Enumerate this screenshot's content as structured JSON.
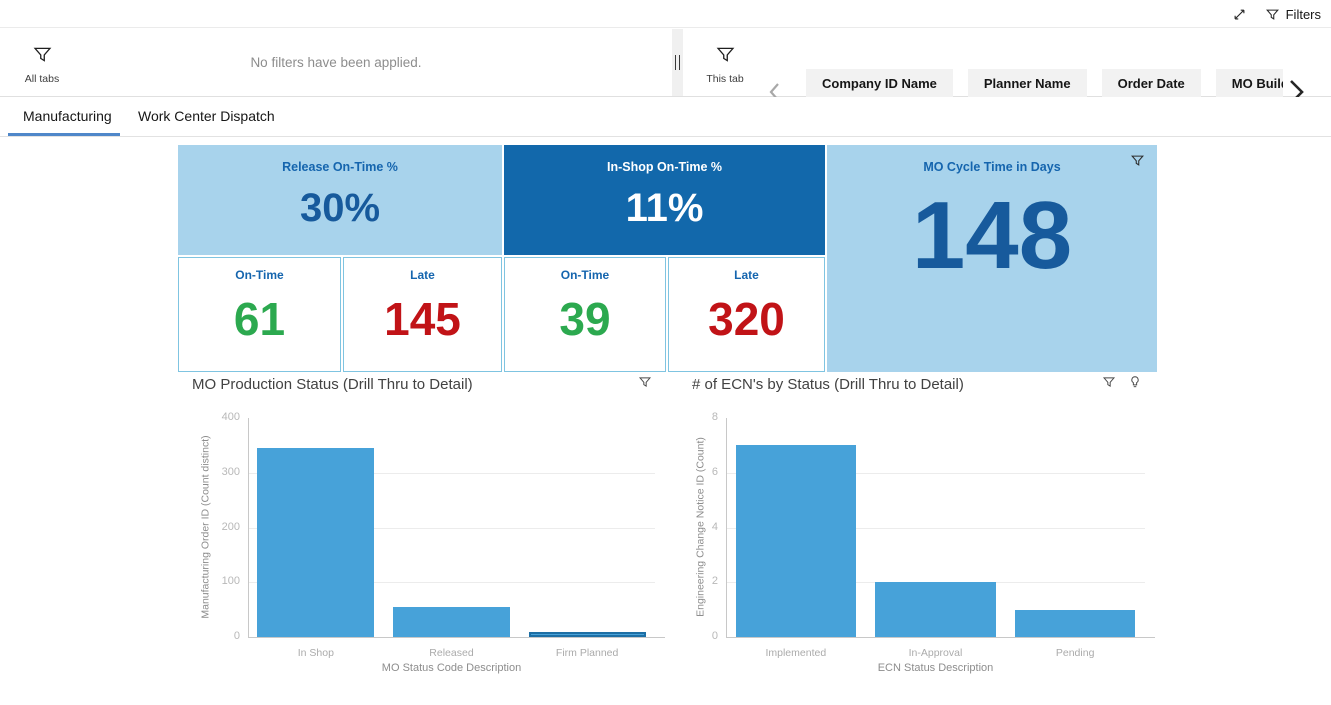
{
  "topbar": {
    "filters_label": "Filters",
    "icons": {
      "expand": "expand-diagonal-icon",
      "filters": "funnel-icon"
    }
  },
  "filter_bar": {
    "all_tabs": {
      "label": "All tabs",
      "icon": "funnel-icon"
    },
    "this_tab": {
      "label": "This tab",
      "icon": "funnel-icon"
    },
    "no_filters_message": "No filters have been applied.",
    "chips": [
      "Company ID Name",
      "Planner Name",
      "Order Date",
      "MO Build Date"
    ],
    "scroll_icons": {
      "left": "chevron-left-icon",
      "right": "chevron-right-icon"
    }
  },
  "tabs": [
    {
      "label": "Manufacturing",
      "active": true
    },
    {
      "label": "Work Center Dispatch",
      "active": false
    }
  ],
  "kpis": {
    "release_on_time": {
      "title": "Release On-Time %",
      "value": "30%"
    },
    "in_shop_on_time": {
      "title": "In-Shop On-Time %",
      "value": "11%"
    },
    "mo_cycle_time": {
      "title": "MO Cycle Time in Days",
      "value": "148",
      "icon": "funnel-icon"
    },
    "sub_cards": [
      {
        "label": "On-Time",
        "value": "61",
        "status": "good"
      },
      {
        "label": "Late",
        "value": "145",
        "status": "bad"
      },
      {
        "label": "On-Time",
        "value": "39",
        "status": "good"
      },
      {
        "label": "Late",
        "value": "320",
        "status": "bad"
      }
    ]
  },
  "chart_data": [
    {
      "type": "bar",
      "title": "MO Production Status (Drill Thru to Detail)",
      "categories": [
        "In Shop",
        "Released",
        "Firm Planned"
      ],
      "values": [
        345,
        55,
        10
      ],
      "selected_category": "Firm Planned",
      "xlabel": "MO Status Code Description",
      "ylabel": "Manufacturing Order ID (Count distinct)",
      "ylim": [
        0,
        400
      ],
      "yticks": [
        0,
        100,
        200,
        300,
        400
      ],
      "grid": true,
      "legend": "none",
      "icons": [
        "funnel-icon"
      ]
    },
    {
      "type": "bar",
      "title": "# of ECN's by Status (Drill Thru to Detail)",
      "categories": [
        "Implemented",
        "In-Approval",
        "Pending"
      ],
      "values": [
        7,
        2,
        1
      ],
      "xlabel": "ECN Status Description",
      "ylabel": "Engineering Change Notice ID (Count)",
      "ylim": [
        0,
        8
      ],
      "yticks": [
        0,
        2,
        4,
        6,
        8
      ],
      "grid": true,
      "legend": "none",
      "icons": [
        "funnel-icon",
        "lightbulb-icon"
      ]
    }
  ],
  "colors": {
    "light_blue_card": "#A8D3EC",
    "dark_blue_card": "#1268AB",
    "kpi_title_blue": "#1565AE",
    "kpi_value_blue": "#175A9C",
    "on_time_green": "#2CA94F",
    "late_red": "#C11317",
    "bar_blue": "#47A2D9",
    "bar_selected_border": "#1D6FA5",
    "tab_underline": "#4F87C9"
  }
}
